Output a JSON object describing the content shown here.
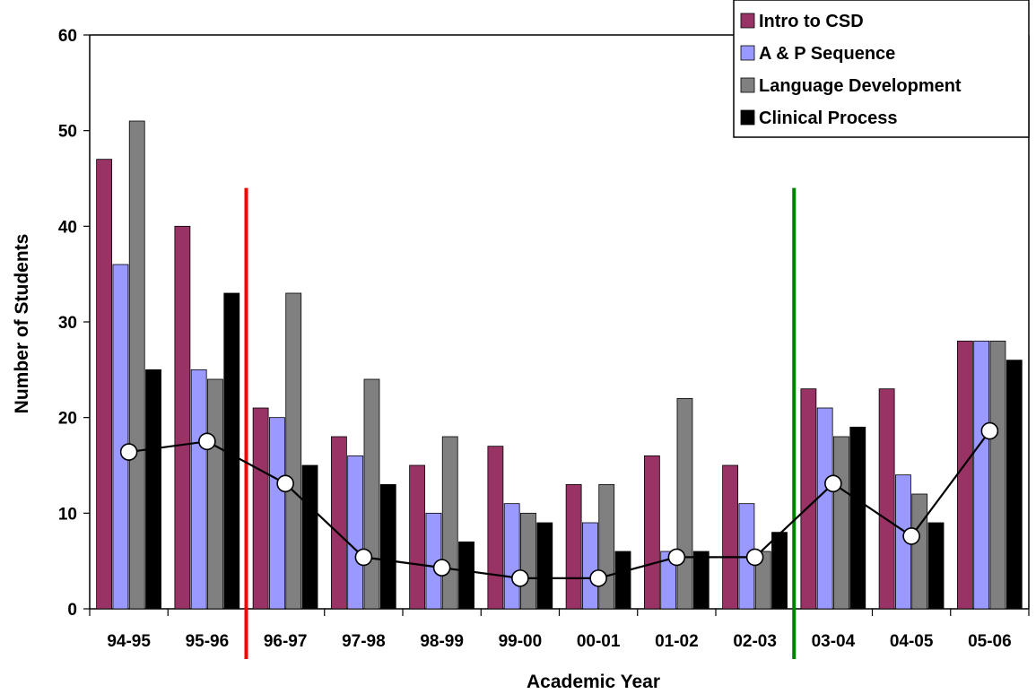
{
  "chart_data": {
    "type": "bar",
    "xlabel": "Academic Year",
    "ylabel": "Number of Students",
    "ylim": [
      0,
      60
    ],
    "yticks": [
      0,
      10,
      20,
      30,
      40,
      50,
      60
    ],
    "grid": false,
    "legend_position": "top-right",
    "categories": [
      "94-95",
      "95-96",
      "96-97",
      "97-98",
      "98-99",
      "99-00",
      "00-01",
      "01-02",
      "02-03",
      "03-04",
      "04-05",
      "05-06"
    ],
    "series": [
      {
        "name": "Intro to CSD",
        "color": "#993366",
        "values": [
          47,
          40,
          21,
          18,
          15,
          17,
          13,
          16,
          15,
          23,
          23,
          28
        ]
      },
      {
        "name": "A & P Sequence",
        "color": "#9999FF",
        "values": [
          36,
          25,
          20,
          16,
          10,
          11,
          9,
          6,
          11,
          21,
          14,
          28
        ]
      },
      {
        "name": "Language Development",
        "color": "#808080",
        "values": [
          51,
          24,
          33,
          24,
          18,
          10,
          13,
          22,
          6,
          18,
          12,
          28
        ]
      },
      {
        "name": "Clinical Process",
        "color": "#000000",
        "values": [
          25,
          33,
          15,
          13,
          7,
          9,
          6,
          6,
          8,
          19,
          9,
          26
        ]
      }
    ],
    "trend_line": {
      "type": "line",
      "marker": "circle-open",
      "values": [
        16.4,
        17.5,
        13.1,
        5.4,
        4.3,
        3.2,
        3.2,
        5.4,
        5.4,
        13.1,
        7.6,
        18.6
      ]
    },
    "vertical_markers": [
      {
        "after_category": "95-96",
        "color": "#FF0000"
      },
      {
        "after_category": "02-03",
        "color": "#008000"
      }
    ]
  }
}
